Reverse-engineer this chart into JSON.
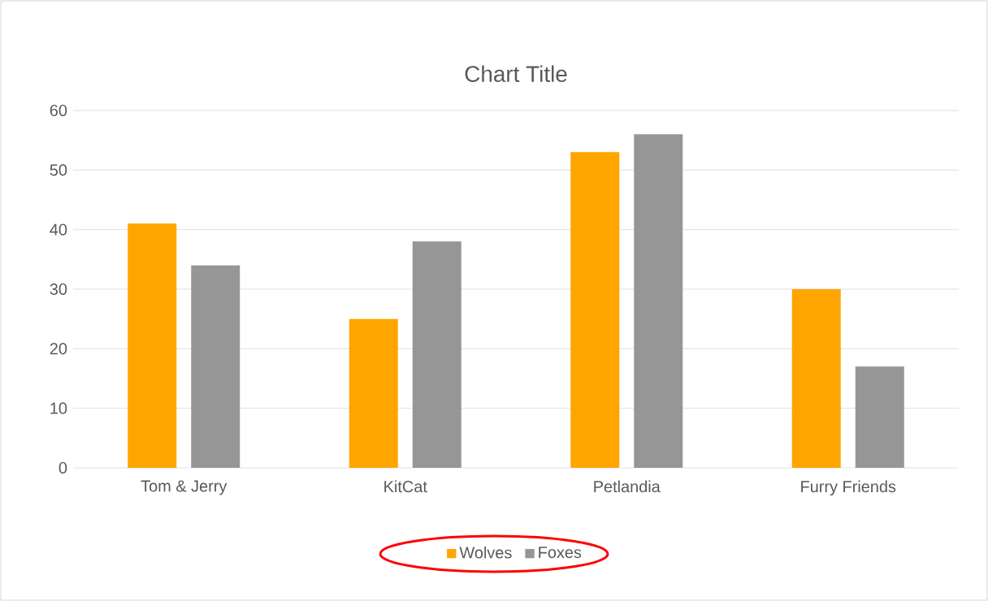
{
  "chart_data": {
    "type": "bar",
    "title": "Chart Title",
    "categories": [
      "Tom & Jerry",
      "KitCat",
      "Petlandia",
      "Furry Friends"
    ],
    "series": [
      {
        "name": "Wolves",
        "color": "#ffa500",
        "values": [
          41,
          25,
          53,
          30
        ]
      },
      {
        "name": "Foxes",
        "color": "#969696",
        "values": [
          34,
          38,
          56,
          17
        ]
      }
    ],
    "ylim": [
      0,
      60
    ],
    "yticks": [
      0,
      10,
      20,
      30,
      40,
      50,
      60
    ],
    "grid": "y",
    "legend": "bottom"
  }
}
